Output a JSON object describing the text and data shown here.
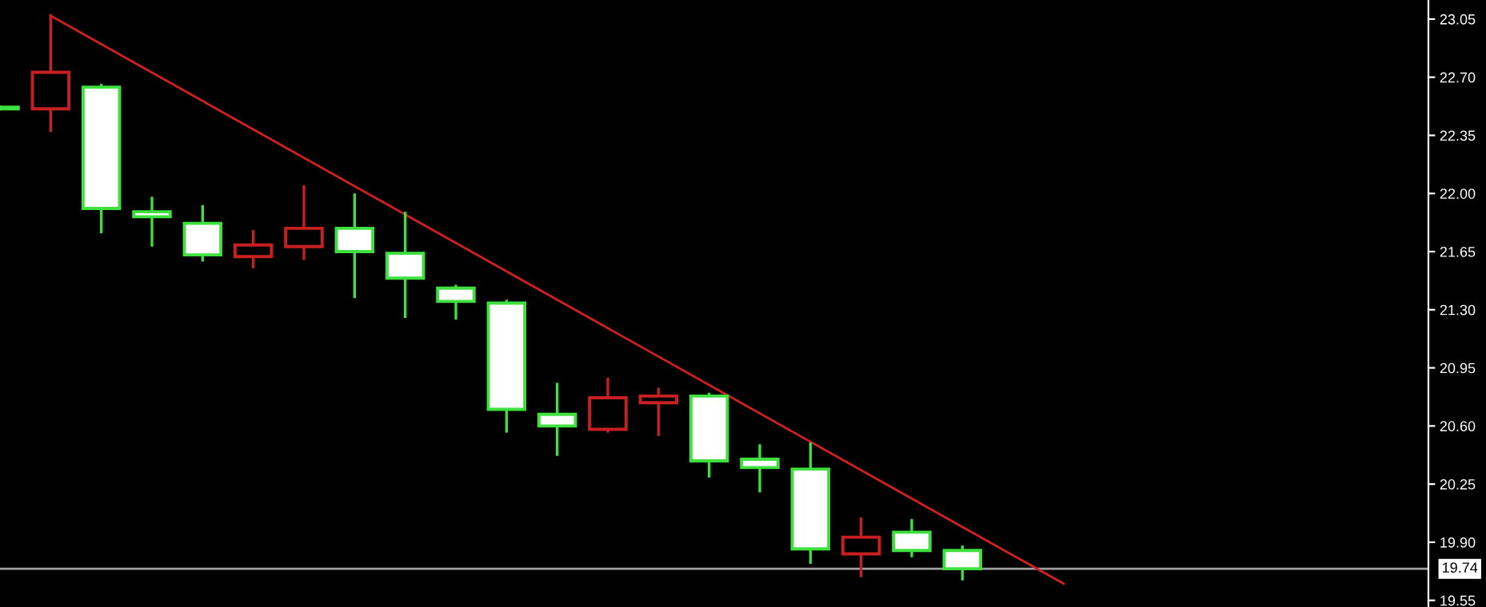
{
  "chart_data": {
    "type": "candlestick",
    "categories": [
      null,
      null,
      null,
      null,
      null,
      null,
      null,
      null,
      null,
      null,
      null,
      null,
      null,
      null,
      null,
      null,
      null,
      null,
      null,
      null,
      null,
      null,
      null,
      null,
      null,
      null,
      null,
      null
    ],
    "series": [
      {
        "ohlc": [
          [
            22.51,
            22.53,
            22.5,
            22.52
          ],
          [
            22.51,
            23.08,
            22.37,
            22.73
          ],
          [
            22.64,
            22.66,
            21.76,
            21.91
          ],
          [
            21.89,
            21.98,
            21.68,
            21.86
          ],
          [
            21.82,
            21.93,
            21.59,
            21.63
          ],
          [
            21.62,
            21.78,
            21.55,
            21.69
          ],
          [
            21.68,
            22.05,
            21.6,
            21.79
          ],
          [
            21.79,
            22.0,
            21.37,
            21.65
          ],
          [
            21.64,
            21.89,
            21.25,
            21.49
          ],
          [
            21.43,
            21.45,
            21.24,
            21.35
          ],
          [
            21.34,
            21.36,
            20.56,
            20.7
          ],
          [
            20.67,
            20.86,
            20.42,
            20.6
          ],
          [
            20.58,
            20.89,
            20.56,
            20.77
          ],
          [
            20.74,
            20.83,
            20.54,
            20.78
          ],
          [
            20.78,
            20.8,
            20.29,
            20.39
          ],
          [
            20.4,
            20.49,
            20.2,
            20.35
          ],
          [
            20.34,
            20.5,
            19.77,
            19.86
          ],
          [
            19.83,
            20.05,
            19.69,
            19.93
          ],
          [
            19.96,
            20.04,
            19.81,
            19.85
          ],
          [
            19.85,
            19.88,
            19.67,
            19.74
          ],
          null,
          null,
          null,
          null,
          null,
          null,
          null,
          null
        ],
        "colors": [
          "#3ee03e",
          "#c82020",
          "#3ee03e",
          "#3ee03e",
          "#3ee03e",
          "#c82020",
          "#c82020",
          "#3ee03e",
          "#3ee03e",
          "#3ee03e",
          "#3ee03e",
          "#3ee03e",
          "#c82020",
          "#c82020",
          "#3ee03e",
          "#3ee03e",
          "#3ee03e",
          "#c82020",
          "#3ee03e",
          "#3ee03e",
          null,
          null,
          null,
          null,
          null,
          null,
          null,
          null
        ]
      },
      {
        "type": "line",
        "values": [
          null,
          23.07,
          null,
          null,
          null,
          null,
          null,
          null,
          null,
          null,
          null,
          null,
          null,
          null,
          null,
          null,
          null,
          null,
          null,
          null,
          null,
          19.65,
          null,
          null,
          null,
          null,
          null,
          null
        ],
        "color": "#d02020"
      }
    ],
    "ylim": [
      19.51,
      23.165
    ],
    "yticks": [
      {
        "value": 19.55,
        "label": "19.55"
      },
      {
        "value": 19.9,
        "label": "19.90"
      },
      {
        "value": 20.25,
        "label": "20.25"
      },
      {
        "value": 20.6,
        "label": "20.60"
      },
      {
        "value": 20.95,
        "label": "20.95"
      },
      {
        "value": 21.3,
        "label": "21.30"
      },
      {
        "value": 21.65,
        "label": "21.65"
      },
      {
        "value": 22.0,
        "label": "22.00"
      },
      {
        "value": 22.35,
        "label": "22.35"
      },
      {
        "value": 22.7,
        "label": "22.70"
      },
      {
        "value": 23.05,
        "label": "23.05"
      }
    ],
    "ref_lines": [
      {
        "axis": "y",
        "value": 19.74,
        "label": "19.74",
        "color": "#a0a0a0"
      }
    ],
    "tick_labels": "y",
    "grid": false,
    "legend": false
  }
}
